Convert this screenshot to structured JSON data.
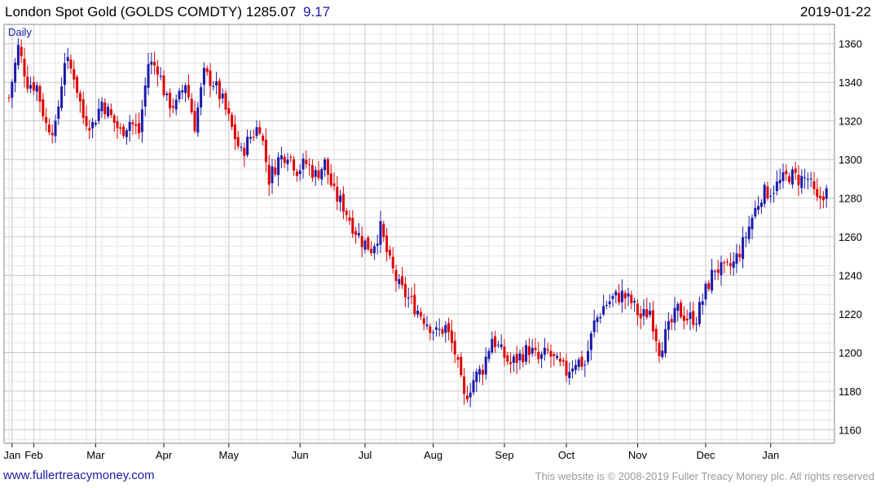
{
  "header": {
    "title": "London Spot Gold (GOLDS COMDTY)",
    "last": "1285.07",
    "change": "9.17",
    "date": "2019-01-22"
  },
  "footer": {
    "link": "www.fullertreacymoney.com",
    "copyright": "This website is © 2008-2019 Fuller Treacy Money plc. All rights reserved"
  },
  "colors": {
    "up": "#1a1aaa",
    "down": "#dd0000",
    "grid_major": "#c8c8c8",
    "grid_minor": "#e6e6e6"
  },
  "chart_data": {
    "type": "candlestick",
    "period_label": "Daily",
    "y_axis_position": "right",
    "ylim": [
      1153,
      1370
    ],
    "y_ticks": [
      1160,
      1180,
      1200,
      1220,
      1240,
      1260,
      1280,
      1300,
      1320,
      1340,
      1360
    ],
    "x_range": [
      0,
      265
    ],
    "months": [
      {
        "label": "Jan",
        "day": 1
      },
      {
        "label": "Feb",
        "day": 8
      },
      {
        "label": "Mar",
        "day": 28
      },
      {
        "label": "Apr",
        "day": 50
      },
      {
        "label": "May",
        "day": 71
      },
      {
        "label": "Jun",
        "day": 94
      },
      {
        "label": "Jul",
        "day": 115
      },
      {
        "label": "Aug",
        "day": 137
      },
      {
        "label": "Sep",
        "day": 160
      },
      {
        "label": "Oct",
        "day": 180
      },
      {
        "label": "Nov",
        "day": 203
      },
      {
        "label": "Dec",
        "day": 225
      },
      {
        "label": "Jan",
        "day": 246
      }
    ],
    "close_path": [
      [
        0,
        1332
      ],
      [
        3,
        1358
      ],
      [
        6,
        1340
      ],
      [
        9,
        1338
      ],
      [
        12,
        1318
      ],
      [
        15,
        1316
      ],
      [
        18,
        1352
      ],
      [
        21,
        1344
      ],
      [
        24,
        1322
      ],
      [
        27,
        1318
      ],
      [
        30,
        1330
      ],
      [
        33,
        1322
      ],
      [
        36,
        1314
      ],
      [
        39,
        1320
      ],
      [
        42,
        1314
      ],
      [
        45,
        1350
      ],
      [
        48,
        1348
      ],
      [
        51,
        1330
      ],
      [
        54,
        1328
      ],
      [
        57,
        1340
      ],
      [
        60,
        1318
      ],
      [
        63,
        1344
      ],
      [
        66,
        1340
      ],
      [
        69,
        1330
      ],
      [
        72,
        1316
      ],
      [
        75,
        1303
      ],
      [
        78,
        1312
      ],
      [
        81,
        1318
      ],
      [
        84,
        1290
      ],
      [
        87,
        1300
      ],
      [
        90,
        1304
      ],
      [
        93,
        1295
      ],
      [
        96,
        1298
      ],
      [
        99,
        1292
      ],
      [
        102,
        1298
      ],
      [
        105,
        1282
      ],
      [
        108,
        1276
      ],
      [
        111,
        1266
      ],
      [
        114,
        1258
      ],
      [
        117,
        1254
      ],
      [
        120,
        1264
      ],
      [
        123,
        1246
      ],
      [
        126,
        1234
      ],
      [
        129,
        1228
      ],
      [
        132,
        1222
      ],
      [
        135,
        1216
      ],
      [
        138,
        1210
      ],
      [
        141,
        1213
      ],
      [
        144,
        1200
      ],
      [
        147,
        1176
      ],
      [
        150,
        1186
      ],
      [
        153,
        1192
      ],
      [
        156,
        1208
      ],
      [
        159,
        1200
      ],
      [
        162,
        1194
      ],
      [
        165,
        1198
      ],
      [
        168,
        1202
      ],
      [
        171,
        1196
      ],
      [
        174,
        1200
      ],
      [
        177,
        1194
      ],
      [
        180,
        1190
      ],
      [
        183,
        1196
      ],
      [
        186,
        1194
      ],
      [
        189,
        1215
      ],
      [
        192,
        1224
      ],
      [
        195,
        1228
      ],
      [
        198,
        1230
      ],
      [
        201,
        1226
      ],
      [
        204,
        1218
      ],
      [
        207,
        1222
      ],
      [
        210,
        1202
      ],
      [
        213,
        1212
      ],
      [
        216,
        1222
      ],
      [
        219,
        1218
      ],
      [
        222,
        1218
      ],
      [
        225,
        1232
      ],
      [
        228,
        1244
      ],
      [
        231,
        1242
      ],
      [
        234,
        1246
      ],
      [
        237,
        1256
      ],
      [
        240,
        1270
      ],
      [
        243,
        1282
      ],
      [
        246,
        1284
      ],
      [
        249,
        1288
      ],
      [
        252,
        1292
      ],
      [
        255,
        1290
      ],
      [
        258,
        1290
      ],
      [
        261,
        1278
      ],
      [
        264,
        1285
      ]
    ],
    "last_value": 1285.07
  }
}
